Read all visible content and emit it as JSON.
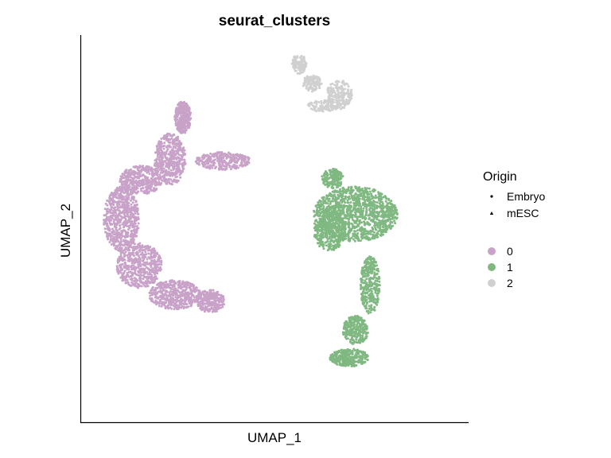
{
  "chart_data": {
    "type": "scatter",
    "title": "seurat_clusters",
    "xlabel": "UMAP_1",
    "ylabel": "UMAP_2",
    "xlim": [
      -12,
      12
    ],
    "ylim": [
      -12,
      12
    ],
    "grid": false,
    "axis_ticks": false,
    "legend_placement": "right",
    "shape_legend": {
      "title": "Origin",
      "entries": [
        {
          "label": "Embryo",
          "shape": "circle"
        },
        {
          "label": "mESC",
          "shape": "triangle"
        }
      ]
    },
    "color_legend": {
      "entries": [
        {
          "label": "0",
          "color": "#C8A2C8"
        },
        {
          "label": "1",
          "color": "#80B882"
        },
        {
          "label": "2",
          "color": "#D0D0D0"
        }
      ]
    },
    "clusters": [
      {
        "name": "0",
        "color": "#C8A2C8",
        "regions": [
          {
            "cx": -5.7,
            "cy": 6.9,
            "rx": 0.5,
            "ry": 1.0,
            "n": 320
          },
          {
            "cx": -6.5,
            "cy": 4.3,
            "rx": 1.0,
            "ry": 1.6,
            "n": 480
          },
          {
            "cx": -3.2,
            "cy": 4.2,
            "rx": 1.7,
            "ry": 0.55,
            "n": 300
          },
          {
            "cx": -8.3,
            "cy": 3.0,
            "rx": 1.3,
            "ry": 0.9,
            "n": 380
          },
          {
            "cx": -9.5,
            "cy": 0.6,
            "rx": 1.1,
            "ry": 2.0,
            "n": 650
          },
          {
            "cx": -8.4,
            "cy": -2.3,
            "rx": 1.4,
            "ry": 1.4,
            "n": 520
          },
          {
            "cx": -6.2,
            "cy": -4.1,
            "rx": 1.6,
            "ry": 0.9,
            "n": 480
          },
          {
            "cx": -4.0,
            "cy": -4.5,
            "rx": 0.9,
            "ry": 0.7,
            "n": 260
          }
        ]
      },
      {
        "name": "1",
        "color": "#80B882",
        "regions": [
          {
            "cx": 5.0,
            "cy": 0.9,
            "rx": 2.6,
            "ry": 1.7,
            "n": 1200
          },
          {
            "cx": 3.4,
            "cy": -0.1,
            "rx": 1.0,
            "ry": 1.3,
            "n": 380
          },
          {
            "cx": 3.6,
            "cy": 3.1,
            "rx": 0.7,
            "ry": 0.6,
            "n": 160
          },
          {
            "cx": 5.9,
            "cy": -3.5,
            "rx": 0.6,
            "ry": 1.8,
            "n": 320
          },
          {
            "cx": 5.0,
            "cy": -6.3,
            "rx": 0.8,
            "ry": 0.9,
            "n": 260
          },
          {
            "cx": 4.6,
            "cy": -8.0,
            "rx": 1.2,
            "ry": 0.55,
            "n": 300
          }
        ]
      },
      {
        "name": "2",
        "color": "#D0D0D0",
        "regions": [
          {
            "cx": 1.5,
            "cy": 10.2,
            "rx": 0.45,
            "ry": 0.6,
            "n": 120
          },
          {
            "cx": 2.3,
            "cy": 9.0,
            "rx": 0.6,
            "ry": 0.5,
            "n": 110
          },
          {
            "cx": 4.0,
            "cy": 8.3,
            "rx": 0.8,
            "ry": 0.9,
            "n": 200
          },
          {
            "cx": 3.0,
            "cy": 7.6,
            "rx": 1.0,
            "ry": 0.35,
            "n": 100
          }
        ]
      }
    ]
  }
}
